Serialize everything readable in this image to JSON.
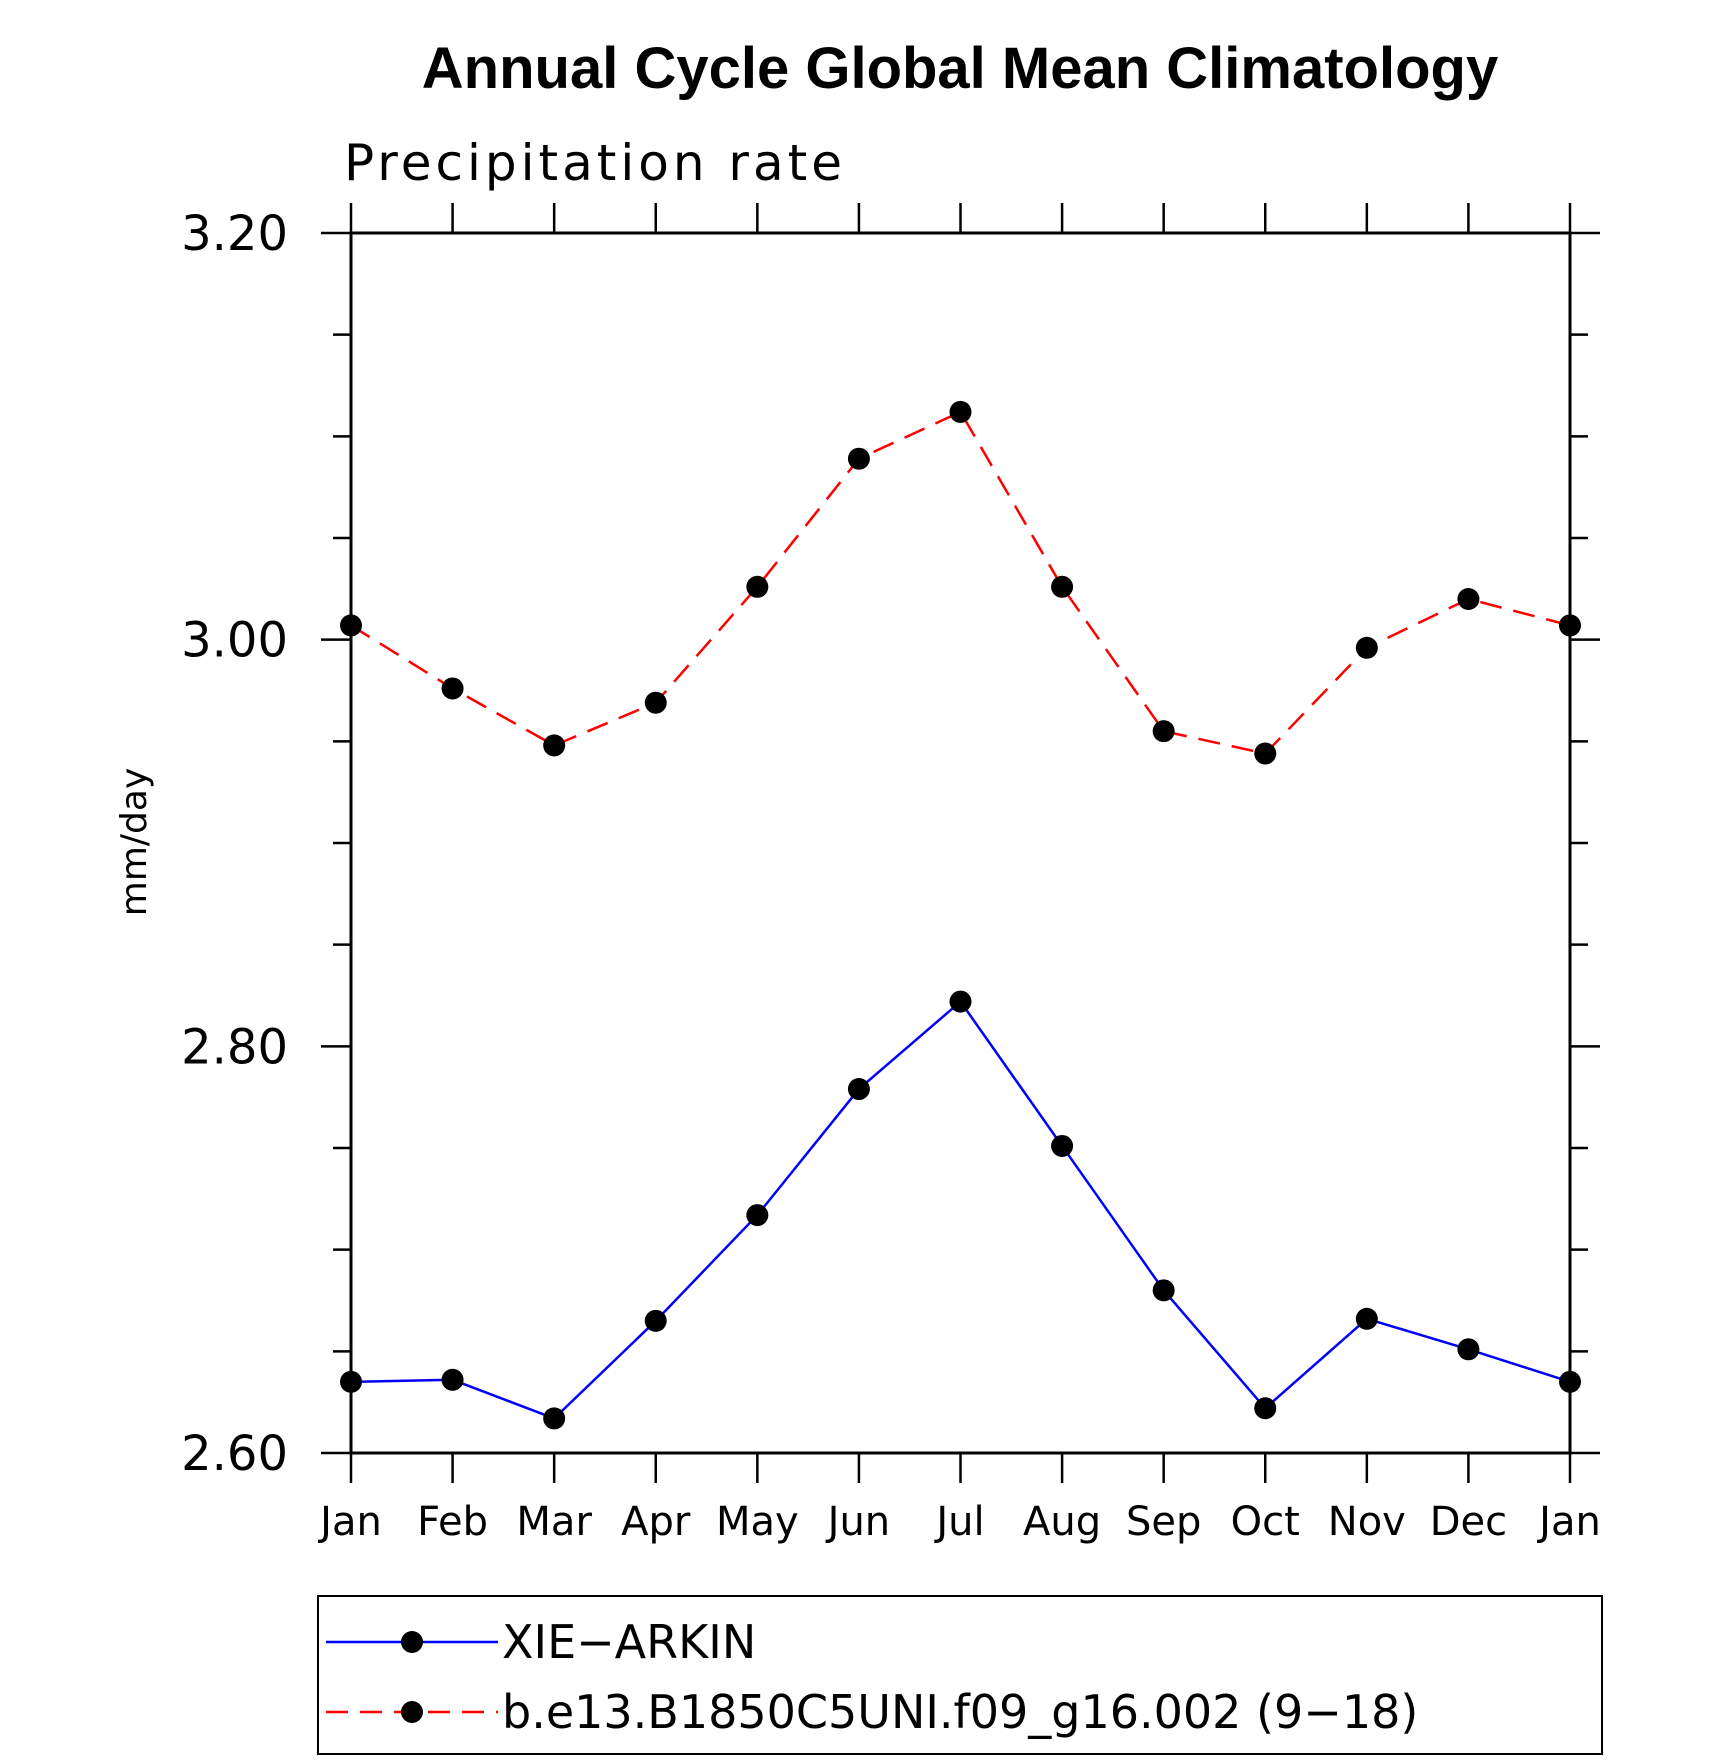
{
  "chart_data": {
    "type": "line",
    "title": "Annual Cycle Global Mean Climatology",
    "subtitle": "Precipitation rate",
    "xlabel": "",
    "ylabel": "mm/day",
    "categories": [
      "Jan",
      "Feb",
      "Mar",
      "Apr",
      "May",
      "Jun",
      "Jul",
      "Aug",
      "Sep",
      "Oct",
      "Nov",
      "Dec",
      "Jan"
    ],
    "ylim": [
      2.6,
      3.2
    ],
    "yticks": [
      2.6,
      2.8,
      3.0,
      3.2
    ],
    "ytick_labels": [
      "2.60",
      "2.80",
      "3.00",
      "3.20"
    ],
    "yminor_step": 0.05,
    "grid": false,
    "legend_position": "bottom",
    "series": [
      {
        "name": "XIE−ARKIN",
        "color": "#0000ff",
        "line_style": "solid",
        "marker": "filled-circle",
        "values": [
          2.635,
          2.636,
          2.617,
          2.665,
          2.717,
          2.779,
          2.822,
          2.751,
          2.68,
          2.622,
          2.666,
          2.651,
          2.635
        ]
      },
      {
        "name": "b.e13.B1850C5UNI.f09_g16.002 (9−18)",
        "color": "#ff0000",
        "line_style": "dashed",
        "marker": "filled-circle",
        "values": [
          3.007,
          2.976,
          2.948,
          2.969,
          3.026,
          3.089,
          3.112,
          3.026,
          2.955,
          2.944,
          2.996,
          3.02,
          3.007
        ]
      }
    ]
  }
}
